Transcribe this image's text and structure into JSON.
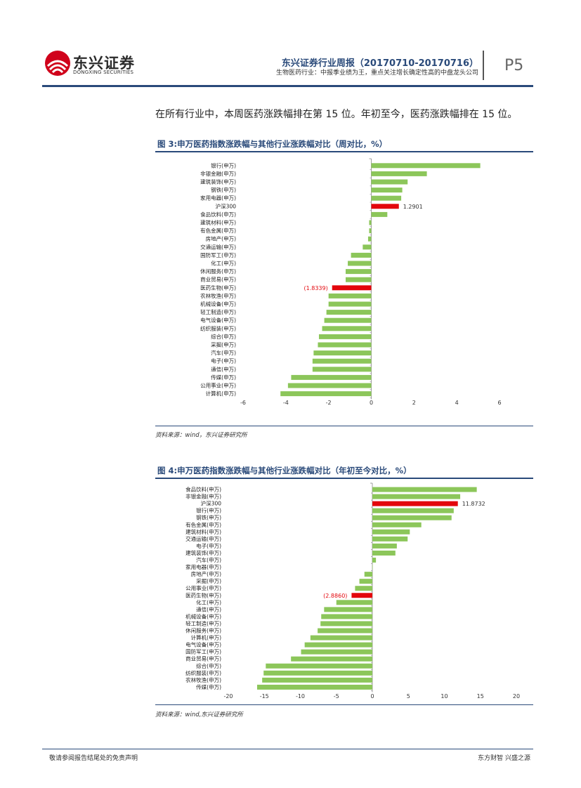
{
  "header": {
    "logo_cn": "东兴证券",
    "logo_en": "DONGXING SECURITIES",
    "title": "东兴证券行业周报（20170710-20170716）",
    "subtitle": "生物医药行业：中报季业绩为王，重点关注增长确定性高的中盘龙头公司",
    "page": "P5"
  },
  "body": {
    "paragraph": "在所有行业中，本周医药涨跌幅排在第 15 位。年初至今，医药涨跌幅排在 15 位。"
  },
  "colors": {
    "brand": "#2a4a7a",
    "bar": "#8cc65a",
    "highlight": "#e3060c",
    "logo_red": "#d0021b"
  },
  "figures": [
    {
      "title": "图 3:申万医药指数涨跌幅与其他行业涨跌幅对比（周对比，%）",
      "source": "资料来源：wind，东兴证券研究所"
    },
    {
      "title": "图 4:申万医药指数涨跌幅与其他行业涨跌幅对比（年初至今对比，%）",
      "source": "资料来源：wind,东兴证券研究所"
    }
  ],
  "chart_data": [
    {
      "type": "bar",
      "orientation": "horizontal",
      "categories": [
        "银行(申万)",
        "非银金融(申万)",
        "建筑装饰(申万)",
        "钢铁(申万)",
        "家用电器(申万)",
        "沪深300",
        "食品饮料(申万)",
        "建筑材料(申万)",
        "有色金属(申万)",
        "房地产(申万)",
        "交通运输(申万)",
        "国防军工(申万)",
        "化工(申万)",
        "休闲服务(申万)",
        "商业贸易(申万)",
        "医药生物(申万)",
        "农林牧渔(申万)",
        "机械设备(申万)",
        "轻工制造(申万)",
        "电气设备(申万)",
        "纺织服装(申万)",
        "综合(申万)",
        "采掘(申万)",
        "汽车(申万)",
        "电子(申万)",
        "通信(申万)",
        "传媒(申万)",
        "公用事业(申万)",
        "计算机(申万)"
      ],
      "values": [
        5.1,
        2.6,
        1.7,
        1.45,
        1.4,
        1.2901,
        0.75,
        -0.1,
        -0.1,
        -0.15,
        -0.4,
        -0.95,
        -1.1,
        -1.2,
        -1.2,
        -1.8339,
        -2.0,
        -2.0,
        -2.1,
        -2.2,
        -2.3,
        -2.45,
        -2.5,
        -2.7,
        -2.75,
        -2.75,
        -3.75,
        -3.9,
        -4.25
      ],
      "highlight": {
        "沪深300": "1.2901",
        "医药生物(申万)": "(1.8339)"
      },
      "xlim": [
        -6,
        6
      ],
      "xticks": [
        "-6",
        "-4",
        "-2",
        "0",
        "2",
        "4",
        "6"
      ],
      "tick_values": [
        -6,
        -4,
        -2,
        0,
        2,
        4,
        6
      ]
    },
    {
      "type": "bar",
      "orientation": "horizontal",
      "categories": [
        "食品饮料(申万)",
        "非银金融(申万)",
        "沪深300",
        "银行(申万)",
        "钢铁(申万)",
        "有色金属(申万)",
        "建筑材料(申万)",
        "交通运输(申万)",
        "电子(申万)",
        "建筑装饰(申万)",
        "汽车(申万)",
        "家用电器(申万)",
        "房地产(申万)",
        "采掘(申万)",
        "公用事业(申万)",
        "医药生物(申万)",
        "化工(申万)",
        "通信(申万)",
        "机械设备(申万)",
        "轻工制造(申万)",
        "休闲服务(申万)",
        "计算机(申万)",
        "电气设备(申万)",
        "国防军工(申万)",
        "商业贸易(申万)",
        "综合(申万)",
        "纺织服装(申万)",
        "农林牧渔(申万)",
        "传媒(申万)"
      ],
      "values": [
        14.5,
        12.2,
        11.8732,
        11.3,
        11.0,
        6.8,
        5.2,
        4.9,
        3.4,
        3.2,
        0.5,
        0.0,
        -1.1,
        -1.8,
        -2.4,
        -2.886,
        -5.0,
        -6.7,
        -7.1,
        -7.2,
        -7.6,
        -8.6,
        -9.4,
        -9.9,
        -11.3,
        -14.8,
        -15.1,
        -15.3,
        -16.0
      ],
      "highlight": {
        "沪深300": "11.8732",
        "医药生物(申万)": "(2.8860)"
      },
      "xlim": [
        -20,
        20
      ],
      "xticks": [
        "-20",
        "-15",
        "-10",
        "-5",
        "0",
        "5",
        "10",
        "15",
        "20"
      ],
      "tick_values": [
        -20,
        -15,
        -10,
        -5,
        0,
        5,
        10,
        15,
        20
      ]
    }
  ],
  "footer": {
    "left": "敬请参阅报告结尾处的免责声明",
    "right": "东方财智 兴盛之源"
  }
}
